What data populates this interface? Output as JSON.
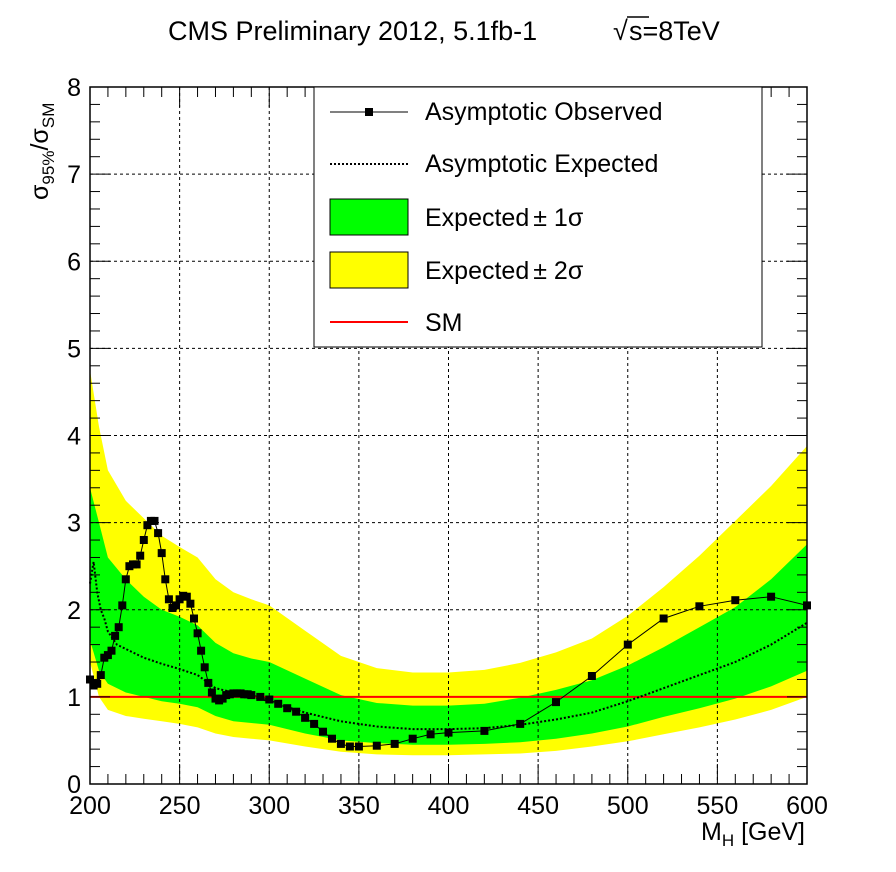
{
  "chart_data": {
    "type": "line",
    "title": "CMS Preliminary 2012, 5.1fb-1",
    "title_energy": "s=8TeV",
    "title_sqrt": "√",
    "xlabel": {
      "main": "M",
      "sub": "H",
      "unit": " [GeV]"
    },
    "ylabel": {
      "sigma": "σ",
      "sub1": "95%",
      "slash": "/",
      "sigma2": "σ",
      "sub2": "SM"
    },
    "xlim": [
      200,
      600
    ],
    "ylim": [
      0,
      8
    ],
    "x_ticks": [
      200,
      250,
      300,
      350,
      400,
      450,
      500,
      550,
      600
    ],
    "y_ticks": [
      0,
      1,
      2,
      3,
      4,
      5,
      6,
      7,
      8
    ],
    "grid": true,
    "legend_position": "top-right",
    "legend": {
      "observed": "Asymptotic Observed",
      "expected": "Asymptotic Expected",
      "band1": "Expected",
      "band1_pm": "± 1σ",
      "band2": "Expected",
      "band2_pm": "± 2σ",
      "sm": "SM"
    },
    "colors": {
      "observed": "#000000",
      "expected": "#000000",
      "band1": "#00ff00",
      "band2": "#ffff00",
      "sm": "#ff0000"
    },
    "sm_value": 1,
    "expected": {
      "x": [
        200,
        202,
        204,
        206,
        208,
        210,
        215,
        220,
        230,
        240,
        250,
        260,
        270,
        280,
        290,
        300,
        320,
        340,
        360,
        380,
        400,
        420,
        440,
        460,
        480,
        500,
        520,
        540,
        560,
        580,
        600
      ],
      "y": [
        2.3,
        2.55,
        2.2,
        2.0,
        1.9,
        1.75,
        1.6,
        1.55,
        1.45,
        1.38,
        1.32,
        1.25,
        1.1,
        1.05,
        1.0,
        0.95,
        0.82,
        0.72,
        0.66,
        0.63,
        0.63,
        0.64,
        0.68,
        0.74,
        0.82,
        0.95,
        1.1,
        1.25,
        1.4,
        1.6,
        1.85
      ]
    },
    "band_1sigma": {
      "x": [
        200,
        205,
        210,
        220,
        230,
        240,
        250,
        260,
        270,
        280,
        290,
        300,
        320,
        340,
        360,
        380,
        400,
        420,
        440,
        460,
        480,
        500,
        520,
        540,
        560,
        580,
        600
      ],
      "lo": [
        1.65,
        1.3,
        1.15,
        1.05,
        1.0,
        0.95,
        0.92,
        0.88,
        0.78,
        0.72,
        0.7,
        0.68,
        0.58,
        0.5,
        0.47,
        0.45,
        0.45,
        0.46,
        0.48,
        0.52,
        0.58,
        0.66,
        0.77,
        0.87,
        0.98,
        1.12,
        1.3
      ],
      "hi": [
        3.4,
        3.0,
        2.6,
        2.35,
        2.15,
        2.0,
        1.92,
        1.82,
        1.62,
        1.5,
        1.44,
        1.4,
        1.21,
        1.02,
        0.93,
        0.9,
        0.9,
        0.92,
        0.99,
        1.08,
        1.19,
        1.36,
        1.57,
        1.8,
        2.03,
        2.35,
        2.75
      ]
    },
    "band_2sigma": {
      "x": [
        200,
        205,
        210,
        220,
        230,
        240,
        250,
        260,
        270,
        280,
        290,
        300,
        320,
        340,
        360,
        380,
        400,
        420,
        440,
        460,
        480,
        500,
        520,
        540,
        560,
        580,
        600
      ],
      "lo": [
        1.4,
        1.0,
        0.85,
        0.78,
        0.75,
        0.72,
        0.69,
        0.65,
        0.58,
        0.54,
        0.52,
        0.5,
        0.43,
        0.37,
        0.34,
        0.33,
        0.33,
        0.34,
        0.35,
        0.38,
        0.43,
        0.49,
        0.57,
        0.65,
        0.74,
        0.85,
        1.0
      ],
      "hi": [
        4.75,
        4.1,
        3.6,
        3.25,
        3.05,
        2.85,
        2.72,
        2.6,
        2.35,
        2.2,
        2.12,
        2.05,
        1.76,
        1.47,
        1.33,
        1.28,
        1.28,
        1.31,
        1.39,
        1.51,
        1.67,
        1.93,
        2.26,
        2.62,
        3.02,
        3.42,
        3.88
      ]
    },
    "observed": {
      "x": [
        200,
        202,
        204,
        206,
        208,
        210,
        212,
        214,
        216,
        218,
        220,
        222,
        224,
        226,
        228,
        230,
        232,
        234,
        236,
        238,
        240,
        242,
        244,
        246,
        248,
        250,
        252,
        254,
        256,
        258,
        260,
        262,
        264,
        266,
        268,
        270,
        272,
        274,
        276,
        278,
        280,
        282,
        284,
        286,
        288,
        290,
        295,
        300,
        305,
        310,
        315,
        320,
        325,
        330,
        335,
        340,
        345,
        350,
        360,
        370,
        380,
        390,
        400,
        420,
        440,
        460,
        480,
        500,
        520,
        540,
        560,
        580,
        600
      ],
      "y": [
        1.2,
        1.13,
        1.15,
        1.25,
        1.45,
        1.48,
        1.53,
        1.7,
        1.8,
        2.05,
        2.35,
        2.5,
        2.52,
        2.52,
        2.62,
        2.8,
        2.97,
        3.02,
        3.02,
        2.88,
        2.65,
        2.35,
        2.12,
        2.02,
        2.05,
        2.12,
        2.16,
        2.15,
        2.07,
        1.9,
        1.73,
        1.53,
        1.34,
        1.16,
        1.05,
        0.98,
        0.96,
        0.98,
        1.02,
        1.03,
        1.04,
        1.04,
        1.04,
        1.03,
        1.03,
        1.02,
        1.0,
        0.97,
        0.92,
        0.87,
        0.83,
        0.76,
        0.69,
        0.6,
        0.52,
        0.46,
        0.43,
        0.43,
        0.44,
        0.46,
        0.52,
        0.57,
        0.59,
        0.61,
        0.69,
        0.94,
        1.24,
        1.6,
        1.9,
        2.04,
        2.11,
        2.15,
        2.05
      ]
    }
  }
}
